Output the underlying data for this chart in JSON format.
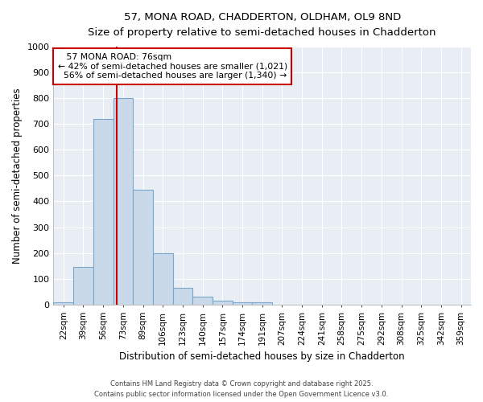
{
  "title": "57, MONA ROAD, CHADDERTON, OLDHAM, OL9 8ND",
  "subtitle": "Size of property relative to semi-detached houses in Chadderton",
  "xlabel": "Distribution of semi-detached houses by size in Chadderton",
  "ylabel": "Number of semi-detached properties",
  "bar_color": "#c9d9ea",
  "bar_edge_color": "#7aa6cc",
  "categories": [
    "22sqm",
    "39sqm",
    "56sqm",
    "73sqm",
    "89sqm",
    "106sqm",
    "123sqm",
    "140sqm",
    "157sqm",
    "174sqm",
    "191sqm",
    "207sqm",
    "224sqm",
    "241sqm",
    "258sqm",
    "275sqm",
    "292sqm",
    "308sqm",
    "325sqm",
    "342sqm",
    "359sqm"
  ],
  "values": [
    8,
    145,
    720,
    800,
    445,
    200,
    65,
    30,
    15,
    10,
    8,
    0,
    0,
    0,
    0,
    0,
    0,
    0,
    0,
    0,
    0
  ],
  "ylim": [
    0,
    1000
  ],
  "yticks": [
    0,
    100,
    200,
    300,
    400,
    500,
    600,
    700,
    800,
    900,
    1000
  ],
  "property_line_label": "57 MONA ROAD: 76sqm",
  "smaller_pct": "42%",
  "smaller_n": "1,021",
  "larger_pct": "56%",
  "larger_n": "1,340",
  "annotation_box_color": "#cc0000",
  "property_line_color": "#cc0000",
  "footer_line1": "Contains HM Land Registry data © Crown copyright and database right 2025.",
  "footer_line2": "Contains public sector information licensed under the Open Government Licence v3.0.",
  "figure_bg": "#ffffff",
  "axes_bg": "#e8eef4",
  "grid_color": "#ffffff"
}
